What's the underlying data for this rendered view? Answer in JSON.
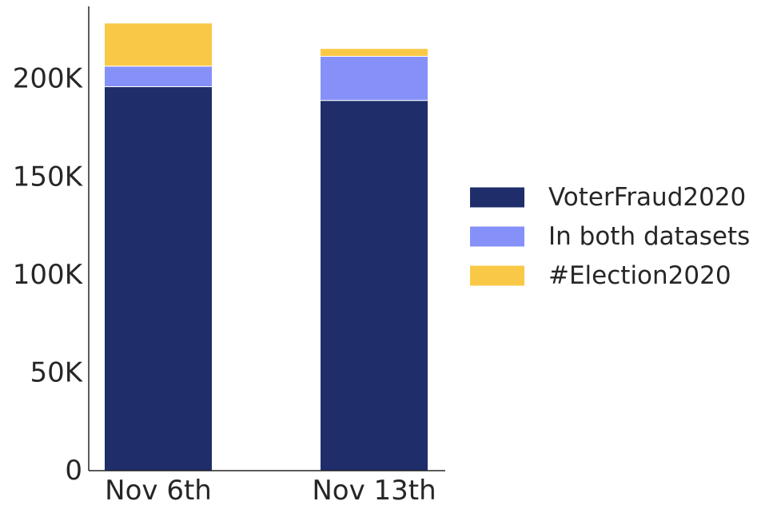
{
  "chart_data": {
    "type": "bar",
    "stacked": true,
    "title": "",
    "xlabel": "",
    "ylabel": "",
    "categories": [
      "Nov 6th",
      "Nov 13th"
    ],
    "series": [
      {
        "name": "VoterFraud2020",
        "color": "#1f2d6b",
        "values": [
          196000,
          189000
        ]
      },
      {
        "name": "In both datasets",
        "color": "#8591f9",
        "values": [
          10500,
          22500
        ]
      },
      {
        "name": "#Election2020",
        "color": "#f9c846",
        "values": [
          22000,
          4000
        ]
      }
    ],
    "ylim": [
      0,
      237000
    ],
    "yticks": [
      0,
      50000,
      100000,
      150000,
      200000
    ],
    "ytick_labels": [
      "0",
      "50K",
      "100K",
      "150K",
      "200K"
    ],
    "grid": false,
    "legend_position": "right"
  }
}
